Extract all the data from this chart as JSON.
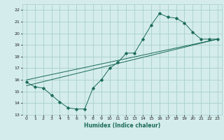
{
  "title": "",
  "xlabel": "Humidex (Indice chaleur)",
  "ylabel": "",
  "background_color": "#d4ecec",
  "grid_color": "#aacfcf",
  "line_color": "#1a6b5a",
  "xlim": [
    -0.5,
    23.5
  ],
  "ylim": [
    13,
    22.5
  ],
  "xticks": [
    0,
    1,
    2,
    3,
    4,
    5,
    6,
    7,
    8,
    9,
    10,
    11,
    12,
    13,
    14,
    15,
    16,
    17,
    18,
    19,
    20,
    21,
    22,
    23
  ],
  "yticks": [
    13,
    14,
    15,
    16,
    17,
    18,
    19,
    20,
    21,
    22
  ],
  "series1_x": [
    0,
    1,
    2,
    3,
    4,
    5,
    6,
    7,
    8,
    9,
    10,
    11,
    12,
    13,
    14,
    15,
    16,
    17,
    18,
    19,
    20,
    21,
    22,
    23
  ],
  "series1_y": [
    15.8,
    15.4,
    15.3,
    14.7,
    14.1,
    13.6,
    13.5,
    13.5,
    15.3,
    16.0,
    17.0,
    17.5,
    18.3,
    18.3,
    19.5,
    20.7,
    21.7,
    21.4,
    21.3,
    20.9,
    20.1,
    19.5,
    19.5,
    19.5
  ],
  "series2_x": [
    0,
    23
  ],
  "series2_y": [
    15.8,
    19.5
  ],
  "series3_x": [
    0,
    23
  ],
  "series3_y": [
    15.8,
    19.5
  ],
  "trend1_x": [
    0,
    23
  ],
  "trend1_y": [
    15.5,
    19.5
  ],
  "trend2_x": [
    0,
    23
  ],
  "trend2_y": [
    16.0,
    19.5
  ]
}
